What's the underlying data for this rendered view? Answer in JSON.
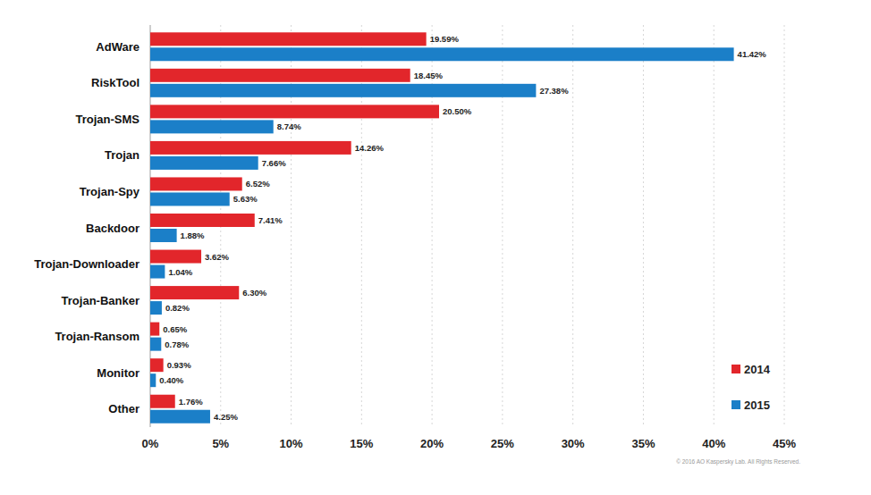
{
  "chart_data": {
    "type": "bar",
    "orientation": "horizontal",
    "categories": [
      "AdWare",
      "RiskTool",
      "Trojan-SMS",
      "Trojan",
      "Trojan-Spy",
      "Backdoor",
      "Trojan-Downloader",
      "Trojan-Banker",
      "Trojan-Ransom",
      "Monitor",
      "Other"
    ],
    "series": [
      {
        "name": "2014",
        "color": "#e2262b",
        "values": [
          19.59,
          18.45,
          20.5,
          14.26,
          6.52,
          7.41,
          3.62,
          6.3,
          0.65,
          0.93,
          1.76
        ],
        "value_labels": [
          "19.59%",
          "18.45%",
          "20.50%",
          "14.26%",
          "6.52%",
          "7.41%",
          "3.62%",
          "6.30%",
          "0.65%",
          "0.93%",
          "1.76%"
        ]
      },
      {
        "name": "2015",
        "color": "#1b7fc8",
        "values": [
          41.42,
          27.38,
          8.74,
          7.66,
          5.63,
          1.88,
          1.04,
          0.82,
          0.78,
          0.4,
          4.25
        ],
        "value_labels": [
          "41.42%",
          "27.38%",
          "8.74%",
          "7.66%",
          "5.63%",
          "1.88%",
          "1.04%",
          "0.82%",
          "0.78%",
          "0.40%",
          "4.25%"
        ]
      }
    ],
    "xlim": [
      0,
      45
    ],
    "xticks": [
      {
        "value": 0,
        "label": "0%"
      },
      {
        "value": 5,
        "label": "5%"
      },
      {
        "value": 10,
        "label": "10%"
      },
      {
        "value": 15,
        "label": "15%"
      },
      {
        "value": 20,
        "label": "20%"
      },
      {
        "value": 25,
        "label": "25%"
      },
      {
        "value": 30,
        "label": "30%"
      },
      {
        "value": 35,
        "label": "35%"
      },
      {
        "value": 40,
        "label": "40%"
      },
      {
        "value": 45,
        "label": "45%"
      }
    ],
    "grid": true,
    "legend": "bottom-right",
    "data_labels": true,
    "annotations": [
      "© 2016 AO Kaspersky Lab. All Rights Reserved."
    ]
  }
}
